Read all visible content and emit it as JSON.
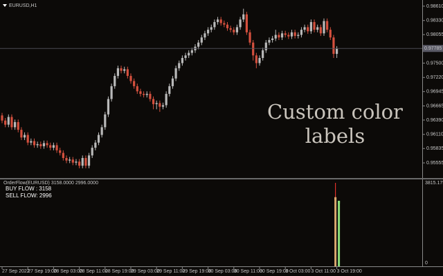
{
  "chart_data": [
    {
      "type": "candlestick",
      "title": "EURUSD,H1",
      "annotation": [
        "Custom color",
        "labels"
      ],
      "categories": [
        "27 Sep 2022",
        null,
        null,
        null,
        null,
        null,
        null,
        null,
        "27 Sep 19:00",
        null,
        null,
        null,
        null,
        null,
        null,
        null,
        "28 Sep 03:00",
        null,
        null,
        null,
        null,
        null,
        null,
        null,
        "28 Sep 11:00",
        null,
        null,
        null,
        null,
        null,
        null,
        null,
        "28 Sep 19:00",
        null,
        null,
        null,
        null,
        null,
        null,
        null,
        "29 Sep 03:00",
        null,
        null,
        null,
        null,
        null,
        null,
        null,
        "29 Sep 11:00",
        null,
        null,
        null,
        null,
        null,
        null,
        null,
        "29 Sep 19:00",
        null,
        null,
        null,
        null,
        null,
        null,
        null,
        "30 Sep 03:00",
        null,
        null,
        null,
        null,
        null,
        null,
        null,
        "30 Sep 11:00",
        null,
        null,
        null,
        null,
        null,
        null,
        null,
        "30 Sep 19:00",
        null,
        null,
        null,
        null,
        null,
        null,
        null,
        "3 Oct 03:00",
        null,
        null,
        null,
        null,
        null,
        null,
        null,
        "3 Oct 11:00",
        null,
        null,
        null,
        null,
        null,
        null,
        null,
        "3 Oct 19:00"
      ],
      "open": [
        0.9648,
        0.9638,
        0.963,
        0.9645,
        0.9625,
        0.9635,
        0.962,
        0.9605,
        0.961,
        0.9595,
        0.9598,
        0.959,
        0.9592,
        0.9588,
        0.9594,
        0.959,
        0.9585,
        0.959,
        0.958,
        0.9575,
        0.9565,
        0.956,
        0.9562,
        0.9556,
        0.9558,
        0.955,
        0.9565,
        0.955,
        0.957,
        0.9585,
        0.9595,
        0.961,
        0.9625,
        0.965,
        0.968,
        0.9705,
        0.9725,
        0.974,
        0.9735,
        0.9738,
        0.9725,
        0.9715,
        0.9705,
        0.9695,
        0.969,
        0.9688,
        0.969,
        0.968,
        0.967,
        0.9672,
        0.9665,
        0.9668,
        0.969,
        0.9705,
        0.972,
        0.974,
        0.975,
        0.976,
        0.9765,
        0.977,
        0.9775,
        0.9782,
        0.979,
        0.98,
        0.9808,
        0.9815,
        0.982,
        0.983,
        0.9835,
        0.9828,
        0.9825,
        0.9818,
        0.9815,
        0.981,
        0.982,
        0.9835,
        0.9845,
        0.981,
        0.979,
        0.9765,
        0.975,
        0.976,
        0.9775,
        0.979,
        0.9795,
        0.9798,
        0.9805,
        0.98,
        0.9808,
        0.9805,
        0.9802,
        0.981,
        0.9803,
        0.9805,
        0.9815,
        0.982,
        0.9812,
        0.983,
        0.9815,
        0.982,
        0.9808,
        0.9832,
        0.9815,
        0.98,
        0.9768
      ],
      "high": [
        0.9653,
        0.9643,
        0.965,
        0.965,
        0.964,
        0.964,
        0.9625,
        0.9615,
        0.9615,
        0.9603,
        0.9603,
        0.9597,
        0.9597,
        0.9599,
        0.9599,
        0.9595,
        0.9595,
        0.9595,
        0.9585,
        0.958,
        0.957,
        0.9567,
        0.9567,
        0.9563,
        0.9563,
        0.957,
        0.957,
        0.9575,
        0.959,
        0.96,
        0.9615,
        0.963,
        0.9655,
        0.9685,
        0.971,
        0.973,
        0.9745,
        0.9745,
        0.9743,
        0.9743,
        0.973,
        0.972,
        0.971,
        0.97,
        0.9695,
        0.9695,
        0.9695,
        0.9685,
        0.9677,
        0.9677,
        0.9673,
        0.9695,
        0.971,
        0.9725,
        0.9745,
        0.9755,
        0.9765,
        0.977,
        0.9775,
        0.978,
        0.9787,
        0.9795,
        0.9805,
        0.9813,
        0.982,
        0.9825,
        0.9835,
        0.984,
        0.984,
        0.9833,
        0.983,
        0.9823,
        0.982,
        0.9825,
        0.984,
        0.9856,
        0.985,
        0.9815,
        0.9795,
        0.977,
        0.9765,
        0.978,
        0.9795,
        0.98,
        0.9803,
        0.9815,
        0.981,
        0.9813,
        0.9813,
        0.981,
        0.9815,
        0.9815,
        0.981,
        0.982,
        0.9825,
        0.9825,
        0.9835,
        0.9835,
        0.9825,
        0.9825,
        0.9837,
        0.9837,
        0.982,
        0.9805,
        0.9783
      ],
      "low": [
        0.9633,
        0.9625,
        0.9625,
        0.962,
        0.962,
        0.9615,
        0.96,
        0.96,
        0.959,
        0.959,
        0.9585,
        0.9585,
        0.9583,
        0.9583,
        0.9585,
        0.958,
        0.958,
        0.9575,
        0.957,
        0.956,
        0.9555,
        0.9555,
        0.9551,
        0.9551,
        0.9545,
        0.9545,
        0.9545,
        0.9545,
        0.9565,
        0.958,
        0.959,
        0.9605,
        0.962,
        0.9645,
        0.9675,
        0.97,
        0.972,
        0.973,
        0.973,
        0.972,
        0.971,
        0.97,
        0.969,
        0.9685,
        0.9683,
        0.9683,
        0.9675,
        0.966,
        0.966,
        0.9655,
        0.966,
        0.9663,
        0.9685,
        0.97,
        0.9715,
        0.9735,
        0.9745,
        0.9755,
        0.976,
        0.9765,
        0.977,
        0.9777,
        0.9785,
        0.9795,
        0.9803,
        0.981,
        0.9815,
        0.9825,
        0.9823,
        0.982,
        0.9813,
        0.981,
        0.9805,
        0.9805,
        0.9815,
        0.983,
        0.9805,
        0.9785,
        0.9755,
        0.974,
        0.9745,
        0.9755,
        0.977,
        0.9785,
        0.979,
        0.9793,
        0.9795,
        0.9795,
        0.98,
        0.9797,
        0.9797,
        0.9798,
        0.9798,
        0.98,
        0.981,
        0.9807,
        0.9807,
        0.981,
        0.981,
        0.9803,
        0.9803,
        0.981,
        0.9795,
        0.976,
        0.976
      ],
      "close": [
        0.9638,
        0.963,
        0.9645,
        0.9625,
        0.9635,
        0.962,
        0.9605,
        0.961,
        0.9595,
        0.9598,
        0.959,
        0.9592,
        0.9588,
        0.9594,
        0.959,
        0.9585,
        0.959,
        0.958,
        0.9575,
        0.9565,
        0.956,
        0.9562,
        0.9556,
        0.9558,
        0.955,
        0.9565,
        0.955,
        0.957,
        0.9585,
        0.9595,
        0.961,
        0.9625,
        0.965,
        0.968,
        0.9705,
        0.9725,
        0.974,
        0.9735,
        0.9738,
        0.9725,
        0.9715,
        0.9705,
        0.9695,
        0.969,
        0.9688,
        0.969,
        0.968,
        0.967,
        0.9672,
        0.9665,
        0.9668,
        0.969,
        0.9705,
        0.972,
        0.974,
        0.975,
        0.976,
        0.9765,
        0.977,
        0.9775,
        0.9782,
        0.979,
        0.98,
        0.9808,
        0.9815,
        0.982,
        0.983,
        0.9835,
        0.9828,
        0.9825,
        0.9818,
        0.9815,
        0.981,
        0.982,
        0.9835,
        0.9845,
        0.981,
        0.979,
        0.9765,
        0.975,
        0.976,
        0.9775,
        0.979,
        0.9795,
        0.9798,
        0.9805,
        0.98,
        0.9808,
        0.9805,
        0.9802,
        0.981,
        0.9803,
        0.9805,
        0.9815,
        0.982,
        0.9812,
        0.983,
        0.9815,
        0.982,
        0.9808,
        0.9832,
        0.9815,
        0.98,
        0.9768,
        0.9778
      ],
      "up_color": "#b9b9b9",
      "down_color": "#d4503e",
      "price_line": 0.97785,
      "ylim": [
        0.9526,
        0.9873
      ],
      "yticks": [
        {
          "value": 0.9861,
          "label": "0.98610"
        },
        {
          "value": 0.9833,
          "label": "0.98330"
        },
        0.98055,
        {
          "value": 0.975,
          "label": "0.97500"
        },
        {
          "value": 0.9722,
          "label": "0.97220"
        },
        0.96945,
        0.96665,
        {
          "value": 0.9639,
          "label": "0.96390"
        },
        {
          "value": 0.9611,
          "label": "0.96110"
        },
        0.95835,
        0.95555
      ]
    },
    {
      "type": "bar",
      "title": "OrderFlow(EURUSD) 3158.0000 2996.0000",
      "legend": [
        "BUY FLOW : 3158",
        "SELL FLOW: 2996"
      ],
      "values": [
        3815.175,
        3158,
        2996
      ],
      "colors": [
        "#e0302a",
        "#d9a96e",
        "#8be07a"
      ],
      "ylim": [
        0,
        3815.175
      ],
      "yticks": [
        0,
        3815.175
      ]
    }
  ]
}
